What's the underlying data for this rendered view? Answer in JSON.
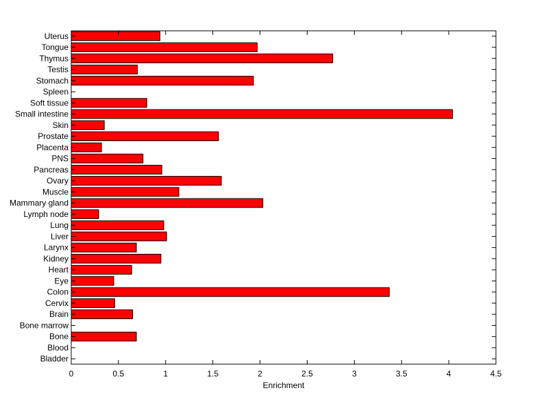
{
  "chart_data": {
    "type": "bar",
    "orientation": "horizontal",
    "title": "",
    "xlabel": "Enrichment",
    "ylabel": "",
    "xlim": [
      0,
      4.5
    ],
    "xticks": [
      "0",
      "0.5",
      "1",
      "1.5",
      "2",
      "2.5",
      "3",
      "3.5",
      "4",
      "4.5"
    ],
    "grid": false,
    "bar_color": "#ff0000",
    "categories": [
      "Bladder",
      "Blood",
      "Bone",
      "Bone marrow",
      "Brain",
      "Cervix",
      "Colon",
      "Eye",
      "Heart",
      "Kidney",
      "Larynx",
      "Liver",
      "Lung",
      "Lymph node",
      "Mammary gland",
      "Muscle",
      "Ovary",
      "Pancreas",
      "PNS",
      "Placenta",
      "Prostate",
      "Skin",
      "Small intestine",
      "Soft tissue",
      "Spleen",
      "Stomach",
      "Testis",
      "Thymus",
      "Tongue",
      "Uterus"
    ],
    "values": [
      0,
      0,
      0.69,
      0,
      0.65,
      0.46,
      3.37,
      0.45,
      0.64,
      0.95,
      0.69,
      1.01,
      0.98,
      0.29,
      2.03,
      1.14,
      1.59,
      0.96,
      0.76,
      0.32,
      1.56,
      0.35,
      4.04,
      0.8,
      0,
      1.93,
      0.7,
      2.77,
      1.97,
      0.94
    ]
  }
}
